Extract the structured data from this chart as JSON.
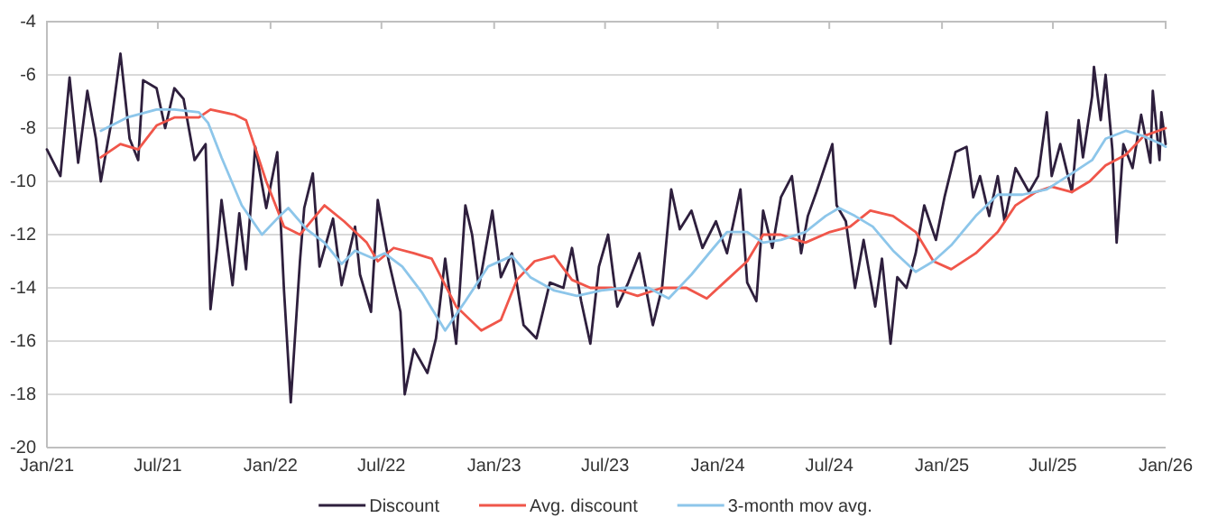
{
  "chart_data": {
    "type": "line",
    "xlim": [
      "2021-01-01",
      "2026-01-01"
    ],
    "ylim": [
      -20,
      -4
    ],
    "xticks": [
      {
        "value": "2021-01-01",
        "label": "Jan/21"
      },
      {
        "value": "2021-07-01",
        "label": "Jul/21"
      },
      {
        "value": "2022-01-01",
        "label": "Jan/22"
      },
      {
        "value": "2022-07-01",
        "label": "Jul/22"
      },
      {
        "value": "2023-01-01",
        "label": "Jan/23"
      },
      {
        "value": "2023-07-01",
        "label": "Jul/23"
      },
      {
        "value": "2024-01-01",
        "label": "Jan/24"
      },
      {
        "value": "2024-07-01",
        "label": "Jul/24"
      },
      {
        "value": "2025-01-01",
        "label": "Jan/25"
      },
      {
        "value": "2025-07-01",
        "label": "Jul/25"
      },
      {
        "value": "2026-01-01",
        "label": "Jan/26"
      }
    ],
    "yticks": [
      -20,
      -18,
      -16,
      -14,
      -12,
      -10,
      -8,
      -6,
      -4
    ],
    "grid": "y",
    "legend": "bottom",
    "marker": "none",
    "line_style": "solid",
    "series": [
      {
        "name": "Discount",
        "color": "#2e1f3d",
        "x": [
          "2021-01-01",
          "2021-01-23",
          "2021-02-07",
          "2021-02-21",
          "2021-03-08",
          "2021-03-22",
          "2021-03-30",
          "2021-04-16",
          "2021-05-01",
          "2021-05-16",
          "2021-05-30",
          "2021-06-07",
          "2021-06-29",
          "2021-07-13",
          "2021-07-28",
          "2021-08-12",
          "2021-08-30",
          "2021-09-17",
          "2021-09-25",
          "2021-10-06",
          "2021-10-13",
          "2021-10-31",
          "2021-11-11",
          "2021-11-22",
          "2021-12-07",
          "2021-12-25",
          "2022-01-12",
          "2022-01-23",
          "2022-02-03",
          "2022-02-18",
          "2022-02-25",
          "2022-03-11",
          "2022-03-22",
          "2022-04-13",
          "2022-04-27",
          "2022-05-19",
          "2022-05-27",
          "2022-06-14",
          "2022-06-25",
          "2022-07-13",
          "2022-08-01",
          "2022-08-08",
          "2022-08-23",
          "2022-09-14",
          "2022-09-28",
          "2022-10-13",
          "2022-10-31",
          "2022-11-15",
          "2022-11-26",
          "2022-12-07",
          "2022-12-29",
          "2023-01-12",
          "2023-01-30",
          "2023-02-18",
          "2023-03-11",
          "2023-04-02",
          "2023-04-24",
          "2023-05-08",
          "2023-05-23",
          "2023-06-07",
          "2023-06-21",
          "2023-07-06",
          "2023-07-21",
          "2023-08-08",
          "2023-08-26",
          "2023-09-17",
          "2023-10-02",
          "2023-10-17",
          "2023-10-31",
          "2023-11-19",
          "2023-12-07",
          "2023-12-29",
          "2024-01-16",
          "2024-02-07",
          "2024-02-18",
          "2024-03-04",
          "2024-03-15",
          "2024-03-30",
          "2024-04-13",
          "2024-05-01",
          "2024-05-16",
          "2024-05-27",
          "2024-06-10",
          "2024-07-06",
          "2024-07-13",
          "2024-07-28",
          "2024-08-12",
          "2024-08-26",
          "2024-09-14",
          "2024-09-25",
          "2024-10-09",
          "2024-10-20",
          "2024-11-04",
          "2024-11-19",
          "2024-12-03",
          "2024-12-22",
          "2025-01-05",
          "2025-01-23",
          "2025-02-10",
          "2025-02-21",
          "2025-03-04",
          "2025-03-19",
          "2025-04-02",
          "2025-04-13",
          "2025-05-01",
          "2025-05-23",
          "2025-06-07",
          "2025-06-21",
          "2025-06-29",
          "2025-07-13",
          "2025-08-01",
          "2025-08-12",
          "2025-08-19",
          "2025-09-03",
          "2025-09-06",
          "2025-09-17",
          "2025-09-25",
          "2025-10-06",
          "2025-10-13",
          "2025-10-24",
          "2025-11-08",
          "2025-11-22",
          "2025-12-07",
          "2025-12-11",
          "2025-12-22",
          "2025-12-25",
          "2026-01-01"
        ],
        "values": [
          -8.8,
          -9.8,
          -6.1,
          -9.3,
          -6.6,
          -8.4,
          -10,
          -7.8,
          -5.2,
          -8.4,
          -9.2,
          -6.2,
          -6.5,
          -8,
          -6.5,
          -6.9,
          -9.2,
          -8.6,
          -14.8,
          -12.5,
          -10.7,
          -13.9,
          -11.2,
          -13.3,
          -8.7,
          -11,
          -8.9,
          -14.1,
          -18.3,
          -13,
          -11,
          -9.7,
          -13.2,
          -11.4,
          -13.9,
          -11.7,
          -13.5,
          -14.9,
          -10.7,
          -13,
          -14.9,
          -18,
          -16.3,
          -17.2,
          -15.9,
          -12.9,
          -16.1,
          -10.9,
          -12,
          -14,
          -11.1,
          -13.6,
          -12.7,
          -15.4,
          -15.9,
          -13.8,
          -14,
          -12.5,
          -14.5,
          -16.1,
          -13.2,
          -12,
          -14.7,
          -13.8,
          -12.7,
          -15.4,
          -14,
          -10.3,
          -11.8,
          -11.1,
          -12.5,
          -11.5,
          -12.7,
          -10.3,
          -13.8,
          -14.5,
          -11.1,
          -12.5,
          -10.6,
          -9.8,
          -12.7,
          -11.3,
          -10.4,
          -8.6,
          -10.9,
          -11.5,
          -14,
          -12.2,
          -14.7,
          -12.9,
          -16.1,
          -13.6,
          -14,
          -12.7,
          -10.9,
          -12.2,
          -10.6,
          -8.9,
          -8.7,
          -10.6,
          -9.8,
          -11.3,
          -9.8,
          -11.5,
          -9.5,
          -10.4,
          -9.8,
          -7.4,
          -9.8,
          -8.6,
          -10.4,
          -7.7,
          -9.1,
          -6.8,
          -5.7,
          -7.7,
          -6.0,
          -8.8,
          -12.3,
          -8.6,
          -9.5,
          -7.5,
          -9.3,
          -6.6,
          -9.2,
          -7.4,
          -8.6
        ]
      },
      {
        "name": "Avg. discount",
        "color": "#f0564a",
        "x": [
          "2021-03-30",
          "2021-05-01",
          "2021-05-30",
          "2021-06-29",
          "2021-07-28",
          "2021-09-06",
          "2021-09-25",
          "2021-11-04",
          "2021-11-22",
          "2021-12-25",
          "2022-01-23",
          "2022-02-18",
          "2022-03-30",
          "2022-05-01",
          "2022-06-07",
          "2022-06-25",
          "2022-07-21",
          "2022-08-23",
          "2022-09-21",
          "2022-10-31",
          "2022-12-11",
          "2023-01-12",
          "2023-02-07",
          "2023-03-08",
          "2023-04-09",
          "2023-05-08",
          "2023-06-07",
          "2023-07-13",
          "2023-08-23",
          "2023-10-02",
          "2023-11-11",
          "2023-12-14",
          "2024-01-16",
          "2024-02-18",
          "2024-03-15",
          "2024-04-13",
          "2024-05-23",
          "2024-07-02",
          "2024-08-04",
          "2024-09-06",
          "2024-10-13",
          "2024-11-19",
          "2024-12-18",
          "2025-01-16",
          "2025-02-25",
          "2025-04-02",
          "2025-05-01",
          "2025-06-03",
          "2025-06-29",
          "2025-08-01",
          "2025-08-30",
          "2025-09-25",
          "2025-10-28",
          "2025-11-26",
          "2026-01-01"
        ],
        "values": [
          -9.1,
          -8.6,
          -8.8,
          -7.9,
          -7.6,
          -7.6,
          -7.3,
          -7.5,
          -7.7,
          -10,
          -11.7,
          -12,
          -10.9,
          -11.5,
          -12.3,
          -13,
          -12.5,
          -12.7,
          -12.9,
          -14.7,
          -15.6,
          -15.2,
          -13.7,
          -13,
          -12.8,
          -13.7,
          -14,
          -14,
          -14.3,
          -14,
          -14,
          -14.4,
          -13.7,
          -13,
          -12,
          -12,
          -12.3,
          -11.9,
          -11.7,
          -11.1,
          -11.3,
          -11.9,
          -13,
          -13.3,
          -12.7,
          -11.9,
          -10.9,
          -10.4,
          -10.2,
          -10.4,
          -10,
          -9.4,
          -9,
          -8.3,
          -8.0
        ]
      },
      {
        "name": "3-month mov avg.",
        "color": "#8dc6ea",
        "x": [
          "2021-03-30",
          "2021-05-12",
          "2021-06-29",
          "2021-07-28",
          "2021-09-06",
          "2021-09-21",
          "2021-10-13",
          "2021-11-15",
          "2021-12-18",
          "2022-01-16",
          "2022-01-30",
          "2022-03-01",
          "2022-03-30",
          "2022-04-27",
          "2022-05-19",
          "2022-06-18",
          "2022-07-06",
          "2022-08-04",
          "2022-09-06",
          "2022-10-13",
          "2022-11-15",
          "2022-12-22",
          "2023-01-30",
          "2023-03-01",
          "2023-04-09",
          "2023-05-16",
          "2023-06-25",
          "2023-08-01",
          "2023-09-10",
          "2023-10-13",
          "2023-11-19",
          "2023-12-25",
          "2024-01-16",
          "2024-02-18",
          "2024-03-15",
          "2024-04-13",
          "2024-05-23",
          "2024-06-25",
          "2024-07-17",
          "2024-08-12",
          "2024-09-10",
          "2024-10-13",
          "2024-11-19",
          "2024-12-18",
          "2025-01-16",
          "2025-02-25",
          "2025-04-02",
          "2025-05-12",
          "2025-06-21",
          "2025-08-01",
          "2025-09-03",
          "2025-09-25",
          "2025-10-28",
          "2025-11-26",
          "2025-12-25",
          "2026-01-01"
        ],
        "values": [
          -8.1,
          -7.6,
          -7.3,
          -7.3,
          -7.4,
          -7.8,
          -9.1,
          -10.9,
          -12,
          -11.3,
          -11,
          -11.8,
          -12.3,
          -13.1,
          -12.6,
          -12.9,
          -12.7,
          -13.2,
          -14.2,
          -15.6,
          -14.5,
          -13.2,
          -12.8,
          -13.6,
          -14.1,
          -14.3,
          -14.1,
          -14,
          -14,
          -14.4,
          -13.5,
          -12.5,
          -11.9,
          -11.9,
          -12.3,
          -12.2,
          -11.9,
          -11.3,
          -11,
          -11.3,
          -11.7,
          -12.6,
          -13.4,
          -13,
          -12.4,
          -11.3,
          -10.5,
          -10.5,
          -10.3,
          -9.7,
          -9.2,
          -8.4,
          -8.1,
          -8.3,
          -8.6,
          -8.7
        ]
      }
    ]
  }
}
